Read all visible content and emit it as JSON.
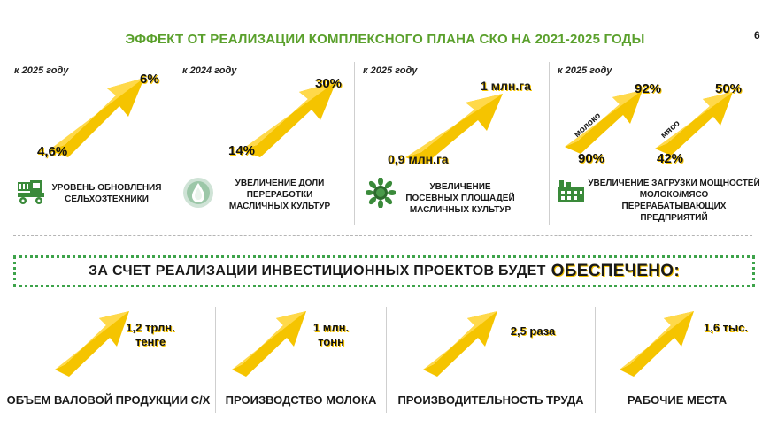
{
  "title": "ЭФФЕКТ ОТ РЕАЛИЗАЦИИ КОМПЛЕКСНОГО ПЛАНА СКО НА 2021-2025 ГОДЫ",
  "page_number": "6",
  "accent_green": "#5aa02c",
  "arrow_yellow": "#f5c400",
  "effects": [
    {
      "year": "к 2025 году",
      "from": "4,6%",
      "to": "6%",
      "desc": "УРОВЕНЬ ОБНОВЛЕНИЯ СЕЛЬХОЗТЕХНИКИ",
      "icon": "harvester-icon"
    },
    {
      "year": "к 2024 году",
      "from": "14%",
      "to": "30%",
      "desc": "УВЕЛИЧЕНИЕ ДОЛИ ПЕРЕРАБОТКИ МАСЛИЧНЫХ КУЛЬТУР",
      "icon": "oil-drop-icon"
    },
    {
      "year": "к 2025 году",
      "from": "0,9 млн.га",
      "to": "1 млн.га",
      "desc": "УВЕЛИЧЕНИЕ ПОСЕВНЫХ ПЛОЩАДЕЙ МАСЛИЧНЫХ КУЛЬТУР",
      "icon": "sunflower-icon"
    },
    {
      "year": "к 2025 году",
      "milk_label": "молоко",
      "milk_from": "90%",
      "milk_to": "92%",
      "meat_label": "мясо",
      "meat_from": "42%",
      "meat_to": "50%",
      "desc": "УВЕЛИЧЕНИЕ ЗАГРУЗКИ МОЩНОСТЕЙ МОЛОКО/МЯСО ПЕРЕРАБАТЫВАЮЩИХ ПРЕДПРИЯТИЙ",
      "icon": "factory-icon"
    }
  ],
  "banner": {
    "text": "ЗА СЧЕТ РЕАЛИЗАЦИИ ИНВЕСТИЦИОННЫХ ПРОЕКТОВ БУДЕТ",
    "emphasis": "ОБЕСПЕЧЕНО:"
  },
  "results": [
    {
      "value_line1": "1,2 трлн.",
      "value_line2": "тенге",
      "label": "ОБЪЕМ ВАЛОВОЙ ПРОДУКЦИИ С/Х"
    },
    {
      "value_line1": "1 млн.",
      "value_line2": "тонн",
      "label": "ПРОИЗВОДСТВО МОЛОКА"
    },
    {
      "value_line1": "2,5 раза",
      "value_line2": "",
      "label": "ПРОИЗВОДИТЕЛЬНОСТЬ ТРУДА"
    },
    {
      "value_line1": "1,6 тыс.",
      "value_line2": "",
      "label": "РАБОЧИЕ МЕСТА"
    }
  ]
}
